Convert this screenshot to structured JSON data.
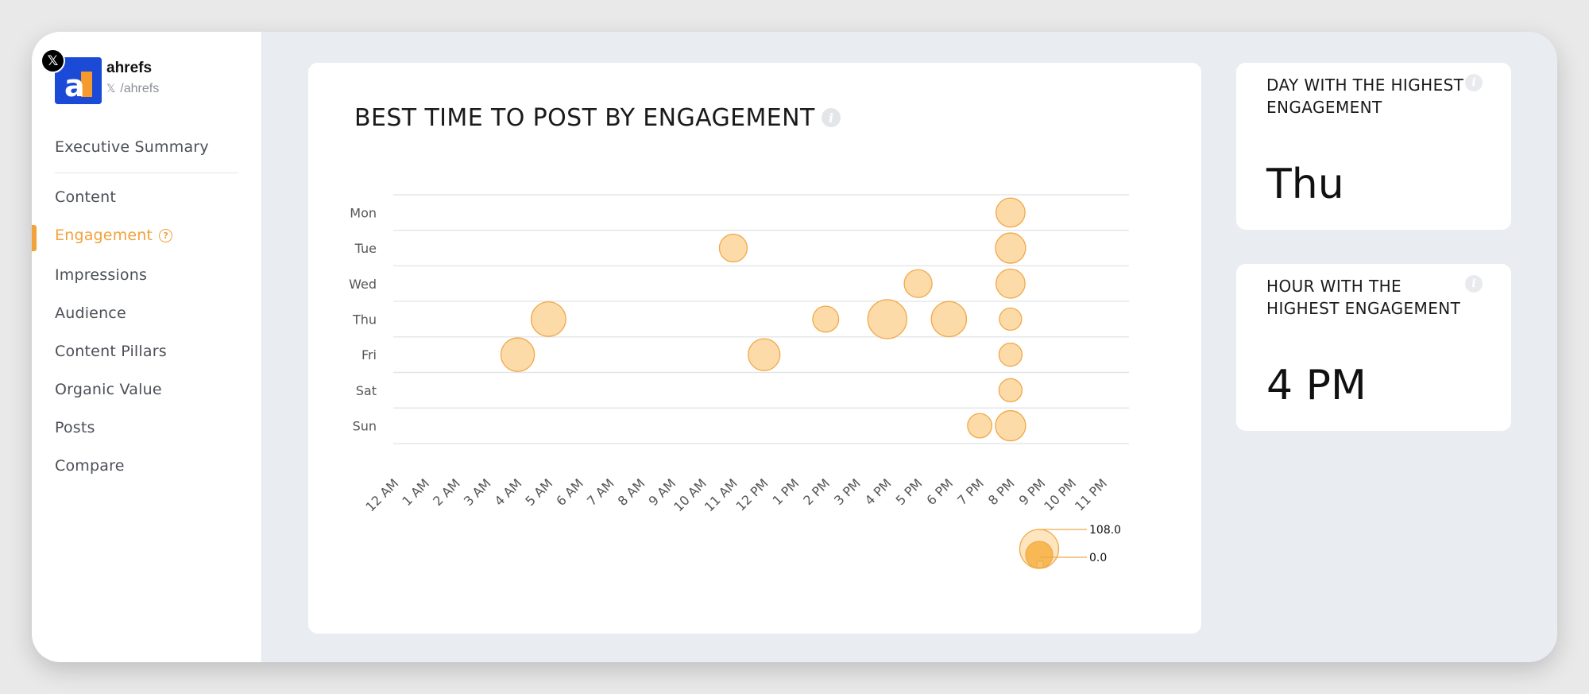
{
  "profile": {
    "name": "ahrefs",
    "handle": "/ahrefs",
    "x_glyph": "𝕏",
    "logo_letter": "a"
  },
  "nav": {
    "items": [
      {
        "label": "Executive Summary"
      },
      {
        "label": "Content"
      },
      {
        "label": "Engagement"
      },
      {
        "label": "Impressions"
      },
      {
        "label": "Audience"
      },
      {
        "label": "Content Pillars"
      },
      {
        "label": "Organic Value"
      },
      {
        "label": "Posts"
      },
      {
        "label": "Compare"
      }
    ],
    "active": "Engagement",
    "help_glyph": "?"
  },
  "chart_card": {
    "title": "BEST TIME TO POST BY ENGAGEMENT",
    "info_glyph": "i"
  },
  "stats": {
    "day": {
      "label": "DAY WITH THE HIGHEST ENGAGEMENT",
      "value": "Thu"
    },
    "hour": {
      "label": "HOUR WITH THE HIGHEST ENGAGEMENT",
      "value": "4 PM"
    }
  },
  "colors": {
    "accent": "#f2a23a",
    "bubble_fill": "#fcd9a3",
    "bubble_stroke": "#f0a94a",
    "logo_bg": "#1b4bd6"
  },
  "chart_data": {
    "type": "bubble",
    "title": "BEST TIME TO POST BY ENGAGEMENT",
    "x_categories": [
      "12 AM",
      "1 AM",
      "2 AM",
      "3 AM",
      "4 AM",
      "5 AM",
      "6 AM",
      "7 AM",
      "8 AM",
      "9 AM",
      "10 AM",
      "11 AM",
      "12 PM",
      "1 PM",
      "2 PM",
      "3 PM",
      "4 PM",
      "5 PM",
      "6 PM",
      "7 PM",
      "8 PM",
      "9 PM",
      "10 PM",
      "11 PM"
    ],
    "y_categories": [
      "Mon",
      "Tue",
      "Wed",
      "Thu",
      "Fri",
      "Sat",
      "Sun"
    ],
    "points": [
      {
        "day": "Mon",
        "hour": "8 PM",
        "size": 60
      },
      {
        "day": "Tue",
        "hour": "11 AM",
        "size": 55
      },
      {
        "day": "Tue",
        "hour": "8 PM",
        "size": 65
      },
      {
        "day": "Wed",
        "hour": "5 PM",
        "size": 55
      },
      {
        "day": "Wed",
        "hour": "8 PM",
        "size": 60
      },
      {
        "day": "Thu",
        "hour": "5 AM",
        "size": 85
      },
      {
        "day": "Thu",
        "hour": "2 PM",
        "size": 48
      },
      {
        "day": "Thu",
        "hour": "4 PM",
        "size": 108
      },
      {
        "day": "Thu",
        "hour": "6 PM",
        "size": 88
      },
      {
        "day": "Thu",
        "hour": "8 PM",
        "size": 35
      },
      {
        "day": "Fri",
        "hour": "4 AM",
        "size": 80
      },
      {
        "day": "Fri",
        "hour": "12 PM",
        "size": 72
      },
      {
        "day": "Fri",
        "hour": "8 PM",
        "size": 38
      },
      {
        "day": "Sat",
        "hour": "8 PM",
        "size": 38
      },
      {
        "day": "Sun",
        "hour": "7 PM",
        "size": 42
      },
      {
        "day": "Sun",
        "hour": "8 PM",
        "size": 65
      }
    ],
    "size_legend": {
      "max": "108.0",
      "min": "0.0"
    },
    "grid": true
  }
}
